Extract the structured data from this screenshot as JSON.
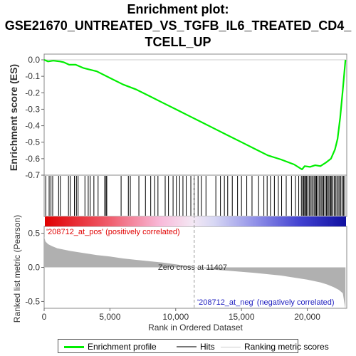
{
  "title_line1": "Enrichment plot:",
  "title_line2": "GSE21670_UNTREATED_VS_TGFB_IL6_TREATED_CD4_",
  "title_line3": "TCELL_UP",
  "legend": {
    "profile": "Enrichment profile",
    "hits": "Hits",
    "ranking": "Ranking metric scores"
  },
  "colors": {
    "profile": "#00ee00",
    "hits": "#000000",
    "metric_fill": "#b0b0b0",
    "pos_label": "#e00000",
    "neg_label": "#2020c0",
    "zero_line": "#999999"
  },
  "chart_data": [
    {
      "type": "line",
      "name": "enrichment-profile",
      "ylabel": "Enrichment score (ES)",
      "xlim": [
        0,
        23000
      ],
      "ylim": [
        -0.7,
        0.0
      ],
      "yticks": [
        "0.0",
        "-0.1",
        "-0.2",
        "-0.3",
        "-0.4",
        "-0.5",
        "-0.6",
        "-0.7"
      ],
      "ytick_values": [
        0.0,
        -0.1,
        -0.2,
        -0.3,
        -0.4,
        -0.5,
        -0.6,
        -0.7
      ],
      "x": [
        0,
        300,
        700,
        1200,
        1500,
        1900,
        2400,
        3000,
        3500,
        4000,
        5000,
        6000,
        7000,
        8000,
        9000,
        10000,
        11000,
        12000,
        13000,
        14000,
        15000,
        16000,
        17000,
        18000,
        19000,
        19600,
        19800,
        20200,
        20600,
        21000,
        21400,
        21800,
        22100,
        22300,
        22500,
        22700,
        22900
      ],
      "y": [
        0.0,
        -0.01,
        -0.005,
        -0.01,
        -0.015,
        -0.03,
        -0.03,
        -0.05,
        -0.06,
        -0.07,
        -0.11,
        -0.15,
        -0.18,
        -0.22,
        -0.26,
        -0.3,
        -0.34,
        -0.38,
        -0.42,
        -0.46,
        -0.5,
        -0.54,
        -0.58,
        -0.605,
        -0.635,
        -0.665,
        -0.645,
        -0.65,
        -0.64,
        -0.645,
        -0.625,
        -0.6,
        -0.545,
        -0.48,
        -0.35,
        -0.18,
        0.0
      ]
    },
    {
      "type": "line",
      "name": "hits",
      "hit_positions": [
        120,
        380,
        520,
        650,
        1100,
        1230,
        1850,
        1980,
        2300,
        2450,
        2580,
        3100,
        3350,
        3500,
        3780,
        4100,
        4600,
        4700,
        4760,
        5850,
        6400,
        6550,
        7200,
        7700,
        8100,
        8400,
        8650,
        9200,
        9450,
        9800,
        10050,
        10300,
        10550,
        10800,
        11150,
        11400,
        11700,
        11950,
        12300,
        13050,
        13400,
        13700,
        13950,
        14300,
        14700,
        15000,
        15400,
        15800,
        16300,
        16700,
        16950,
        17200,
        17500,
        17800,
        18050,
        18400,
        18800,
        19100,
        19350,
        19550,
        19650,
        19720,
        19800,
        19880,
        19950,
        20050,
        20150,
        20250,
        20350,
        20450,
        20550,
        20650,
        20700,
        20800,
        20900,
        21000,
        21100,
        21200,
        21250,
        21350,
        21450,
        21500,
        21600,
        21700,
        21780,
        21850,
        21950,
        22050,
        22150,
        22250,
        22350,
        22450,
        22550,
        22650,
        22750,
        22850
      ]
    },
    {
      "type": "area",
      "name": "ranked-list-metric",
      "xlabel": "Rank in Ordered Dataset",
      "ylabel": "Ranked list metric (Pearson)",
      "xlim": [
        0,
        23000
      ],
      "ylim": [
        -0.6,
        0.6
      ],
      "xticks": [
        "0",
        "5,000",
        "10,000",
        "15,000",
        "20,000"
      ],
      "xtick_values": [
        0,
        5000,
        10000,
        15000,
        20000
      ],
      "yticks": [
        "0.5",
        "0.0",
        "-0.5"
      ],
      "ytick_values": [
        0.5,
        0.0,
        -0.5
      ],
      "x": [
        0,
        100,
        300,
        600,
        1000,
        2000,
        3000,
        4000,
        5000,
        6000,
        7000,
        8000,
        9000,
        10000,
        11000,
        11407,
        12000,
        13000,
        14000,
        15000,
        16000,
        17000,
        18000,
        19000,
        20000,
        21000,
        21500,
        22000,
        22400,
        22700,
        22900
      ],
      "y": [
        0.45,
        0.38,
        0.34,
        0.31,
        0.28,
        0.24,
        0.21,
        0.18,
        0.16,
        0.13,
        0.11,
        0.09,
        0.07,
        0.045,
        0.015,
        0.0,
        -0.015,
        -0.035,
        -0.05,
        -0.065,
        -0.08,
        -0.1,
        -0.12,
        -0.15,
        -0.18,
        -0.22,
        -0.25,
        -0.29,
        -0.33,
        -0.38,
        -0.62
      ],
      "zero_cross_label": "Zero cross at 11407",
      "zero_cross": 11407,
      "pos_label": "'208712_at_pos' (positively correlated)",
      "neg_label": "'208712_at_neg' (negatively correlated)"
    }
  ]
}
